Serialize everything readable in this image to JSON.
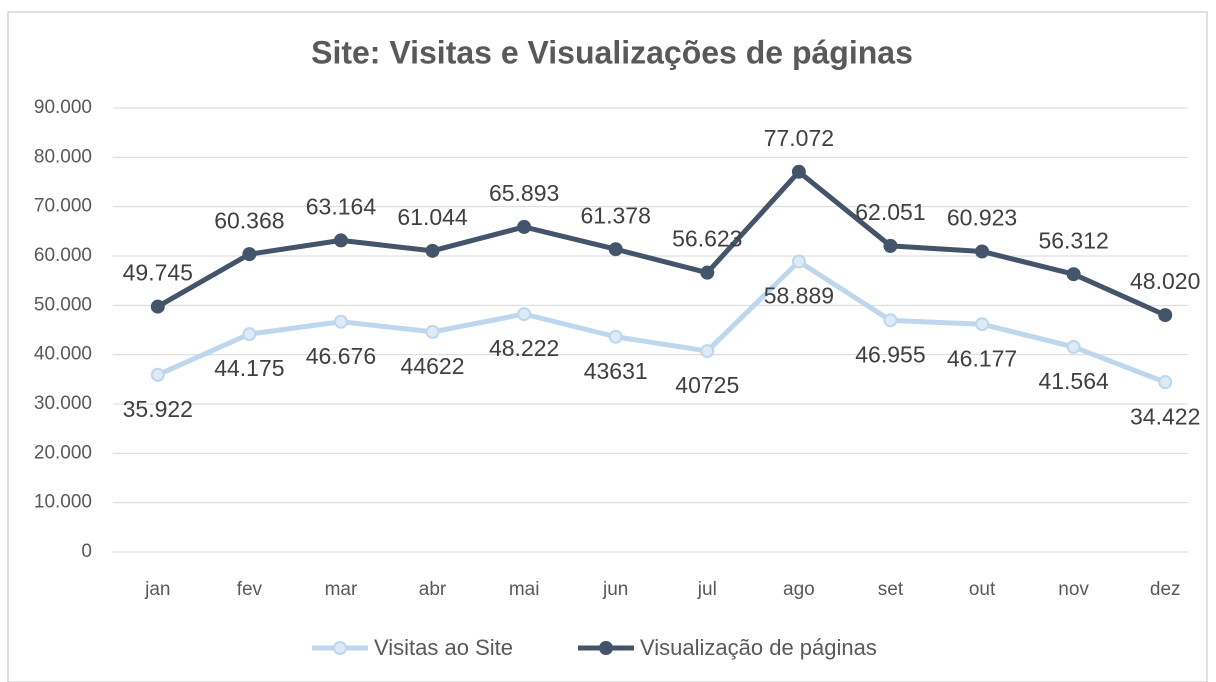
{
  "chart_data": {
    "type": "line",
    "title": "Site: Visitas e Visualizações de páginas",
    "categories": [
      "jan",
      "fev",
      "mar",
      "abr",
      "mai",
      "jun",
      "jul",
      "ago",
      "set",
      "out",
      "nov",
      "dez"
    ],
    "series": [
      {
        "name": "Visitas ao Site",
        "color": "#bdd7ee",
        "marker_fill": "#deebf7",
        "values": [
          35922,
          44175,
          46676,
          44622,
          48222,
          43631,
          40725,
          58889,
          46955,
          46177,
          41564,
          34422
        ],
        "value_labels": [
          "35.922",
          "44.175",
          "46.676",
          "44622",
          "48.222",
          "43631",
          "40725",
          "58.889",
          "46.955",
          "46.177",
          "41.564",
          "34.422"
        ]
      },
      {
        "name": "Visualização de páginas",
        "color": "#44546a",
        "marker_fill": "#44546a",
        "values": [
          49745,
          60368,
          63164,
          61044,
          65893,
          61378,
          56623,
          77072,
          62051,
          60923,
          56312,
          48020
        ],
        "value_labels": [
          "49.745",
          "60.368",
          "63.164",
          "61.044",
          "65.893",
          "61.378",
          "56.623",
          "77.072",
          "62.051",
          "60.923",
          "56.312",
          "48.020"
        ]
      }
    ],
    "ylim": [
      0,
      90000
    ],
    "yticks": [
      0,
      {
        "value": 10000,
        "label": "10.000"
      },
      {
        "value": 20000,
        "label": "20.000"
      },
      {
        "value": 30000,
        "label": "30.000"
      },
      {
        "value": 40000,
        "label": "40.000"
      },
      {
        "value": 50000,
        "label": "50.000"
      },
      {
        "value": 60000,
        "label": "60.000"
      },
      {
        "value": 70000,
        "label": "70.000"
      },
      {
        "value": 80000,
        "label": "80.000"
      },
      {
        "value": 90000,
        "label": "90.000"
      }
    ],
    "grid": true,
    "legend": "bottom"
  }
}
